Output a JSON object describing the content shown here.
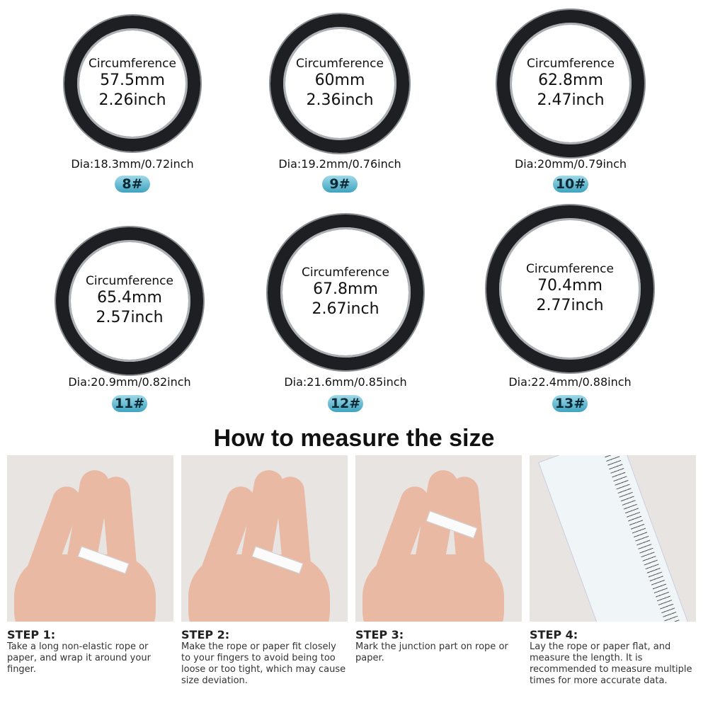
{
  "sizes": [
    {
      "label": "Circumference",
      "mm": "57.5mm",
      "inch": "2.26inch",
      "dia": "Dia:18.3mm/0.72inch",
      "badge": "8#"
    },
    {
      "label": "Circumference",
      "mm": "60mm",
      "inch": "2.36inch",
      "dia": "Dia:19.2mm/0.76inch",
      "badge": "9#"
    },
    {
      "label": "Circumference",
      "mm": "62.8mm",
      "inch": "2.47inch",
      "dia": "Dia:20mm/0.79inch",
      "badge": "10#"
    },
    {
      "label": "Circumference",
      "mm": "65.4mm",
      "inch": "2.57inch",
      "dia": "Dia:20.9mm/0.82inch",
      "badge": "11#"
    },
    {
      "label": "Circumference",
      "mm": "67.8mm",
      "inch": "2.67inch",
      "dia": "Dia:21.6mm/0.85inch",
      "badge": "12#"
    },
    {
      "label": "Circumference",
      "mm": "70.4mm",
      "inch": "2.77inch",
      "dia": "Dia:22.4mm/0.88inch",
      "badge": "13#"
    }
  ],
  "title": "How to measure the size",
  "steps": [
    {
      "heading": "STEP 1:",
      "text": "Take a long non-elastic rope or paper, and wrap it around your finger."
    },
    {
      "heading": "STEP 2:",
      "text": "Make the rope or paper fit closely to your fingers to avoid being too loose or too tight, which may cause size deviation."
    },
    {
      "heading": "STEP 3:",
      "text": "Mark the junction part on rope or paper."
    },
    {
      "heading": "STEP 4:",
      "text": "Lay the rope or paper flat, and measure the length. It is recommended to measure multiple times for more accurate data."
    }
  ],
  "colors": {
    "badge": "#3fa3bf",
    "ring": "#1d1f22"
  }
}
